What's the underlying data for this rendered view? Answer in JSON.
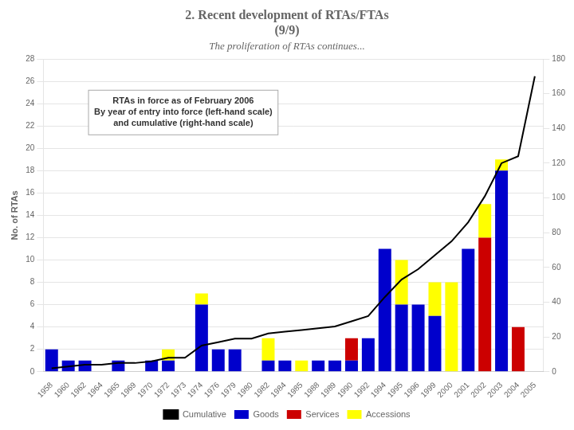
{
  "chart_data": {
    "type": "bar",
    "title": "2. Recent development of RTAs/FTAs\n(9/9)",
    "subtitle": "The proliferation of RTAs continues...",
    "annotation": "RTAs in force as of February 2006\nBy year of entry into force (left-hand scale)\nand cumulative (right-hand scale)",
    "categories": [
      1958,
      1960,
      1962,
      1964,
      1965,
      1969,
      1970,
      1972,
      1973,
      1974,
      1976,
      1979,
      1980,
      1982,
      1984,
      1985,
      1988,
      1989,
      1990,
      1992,
      1994,
      1995,
      1996,
      1999,
      2000,
      2001,
      2002,
      2003,
      2004,
      2005
    ],
    "series": [
      {
        "name": "Goods",
        "type": "bar",
        "color": "#0000cc",
        "values": [
          2,
          1,
          1,
          0,
          1,
          0,
          1,
          1,
          0,
          6,
          2,
          2,
          0,
          1,
          1,
          0,
          1,
          1,
          1,
          3,
          11,
          6,
          6,
          5,
          0,
          11,
          0,
          18,
          0,
          0
        ]
      },
      {
        "name": "Services",
        "type": "bar",
        "color": "#cc0000",
        "values": [
          0,
          0,
          0,
          0,
          0,
          0,
          0,
          0,
          0,
          0,
          0,
          0,
          0,
          0,
          0,
          0,
          0,
          0,
          2,
          0,
          0,
          0,
          0,
          0,
          0,
          0,
          12,
          0,
          4,
          0
        ]
      },
      {
        "name": "Accessions",
        "type": "bar",
        "color": "#ffff00",
        "values": [
          0,
          0,
          0,
          0,
          0,
          0,
          0,
          1,
          0,
          1,
          0,
          0,
          0,
          2,
          0,
          1,
          0,
          0,
          0,
          0,
          0,
          4,
          0,
          3,
          8,
          0,
          3,
          1,
          0,
          0
        ]
      },
      {
        "name": "Cumulative",
        "type": "line",
        "axis": "y2",
        "color": "#000000",
        "values": [
          2,
          3,
          4,
          4,
          5,
          5,
          6,
          8,
          8,
          15,
          17,
          19,
          19,
          22,
          23,
          24,
          25,
          26,
          29,
          32,
          43,
          53,
          59,
          67,
          75,
          86,
          101,
          120,
          124,
          170
        ]
      }
    ],
    "stacked": true,
    "ylabel": "No. of RTAs",
    "ylim": [
      0,
      28
    ],
    "yticks": [
      0,
      2,
      4,
      6,
      8,
      10,
      12,
      14,
      16,
      18,
      20,
      22,
      24,
      26,
      28
    ],
    "y2lim": [
      0,
      180
    ],
    "y2ticks": [
      0,
      20,
      40,
      60,
      80,
      100,
      120,
      140,
      160,
      180
    ],
    "grid": true,
    "legend": "bottom"
  }
}
